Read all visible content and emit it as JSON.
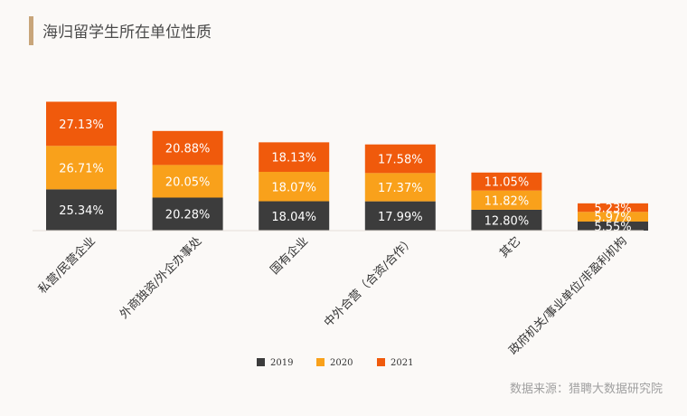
{
  "title": "海归留学生所在单位性质",
  "source": "数据来源：猎聘大数据研究院",
  "colors": {
    "title_accent": "#c8a57a",
    "2019": "#3c3c3c",
    "2020": "#f9a11b",
    "2021": "#f05a0c"
  },
  "chart_data": {
    "type": "bar",
    "stacked": true,
    "title": "海归留学生所在单位性质",
    "categories": [
      "私营/民营企业",
      "外商独资/外企办事处",
      "国有企业",
      "中外合营（合资/合作）",
      "其它",
      "政府机关/事业单位/非盈利机构"
    ],
    "series": [
      {
        "name": "2019",
        "values": [
          25.34,
          20.28,
          18.04,
          17.99,
          12.8,
          5.55
        ],
        "labels": [
          "25.34%",
          "20.28%",
          "18.04%",
          "17.99%",
          "12.80%",
          "5.55%"
        ]
      },
      {
        "name": "2020",
        "values": [
          26.71,
          20.05,
          18.07,
          17.37,
          11.82,
          5.97
        ],
        "labels": [
          "26.71%",
          "20.05%",
          "18.07%",
          "17.37%",
          "11.82%",
          "5.97%"
        ]
      },
      {
        "name": "2021",
        "values": [
          27.13,
          20.88,
          18.13,
          17.58,
          11.05,
          5.23
        ],
        "labels": [
          "27.13%",
          "20.88%",
          "18.13%",
          "17.58%",
          "11.05%",
          "5.23%"
        ]
      }
    ],
    "legend_position": "bottom",
    "grid": false
  }
}
